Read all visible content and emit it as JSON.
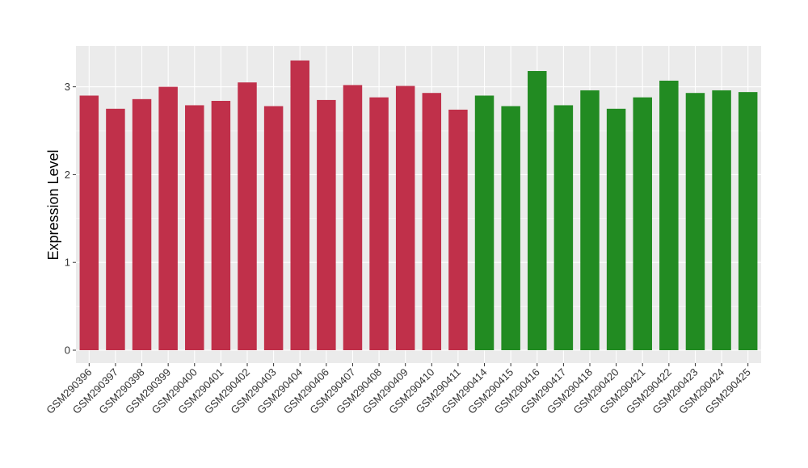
{
  "chart_data": {
    "type": "bar",
    "title": "",
    "xlabel": "",
    "ylabel": "Expression Level",
    "ylim": [
      0,
      3.45
    ],
    "yticks": [
      0,
      1,
      2,
      3
    ],
    "grid": true,
    "legend": "none",
    "colors": {
      "group_a": "#C0304A",
      "group_b": "#228B22",
      "panel_bg": "#EBEBEB",
      "grid": "#FFFFFF"
    },
    "categories": [
      "GSM290396",
      "GSM290397",
      "GSM290398",
      "GSM290399",
      "GSM290400",
      "GSM290401",
      "GSM290402",
      "GSM290403",
      "GSM290404",
      "GSM290406",
      "GSM290407",
      "GSM290408",
      "GSM290409",
      "GSM290410",
      "GSM290411",
      "GSM290414",
      "GSM290415",
      "GSM290416",
      "GSM290417",
      "GSM290418",
      "GSM290420",
      "GSM290421",
      "GSM290422",
      "GSM290423",
      "GSM290424",
      "GSM290425"
    ],
    "values": [
      2.9,
      2.75,
      2.86,
      3.0,
      2.79,
      2.84,
      3.05,
      2.78,
      3.3,
      2.85,
      3.02,
      2.88,
      3.01,
      2.93,
      2.74,
      2.9,
      2.78,
      3.18,
      2.79,
      2.96,
      2.75,
      2.88,
      3.07,
      2.93,
      2.96,
      2.94
    ],
    "groups": [
      "a",
      "a",
      "a",
      "a",
      "a",
      "a",
      "a",
      "a",
      "a",
      "a",
      "a",
      "a",
      "a",
      "a",
      "a",
      "b",
      "b",
      "b",
      "b",
      "b",
      "b",
      "b",
      "b",
      "b",
      "b",
      "b"
    ]
  }
}
